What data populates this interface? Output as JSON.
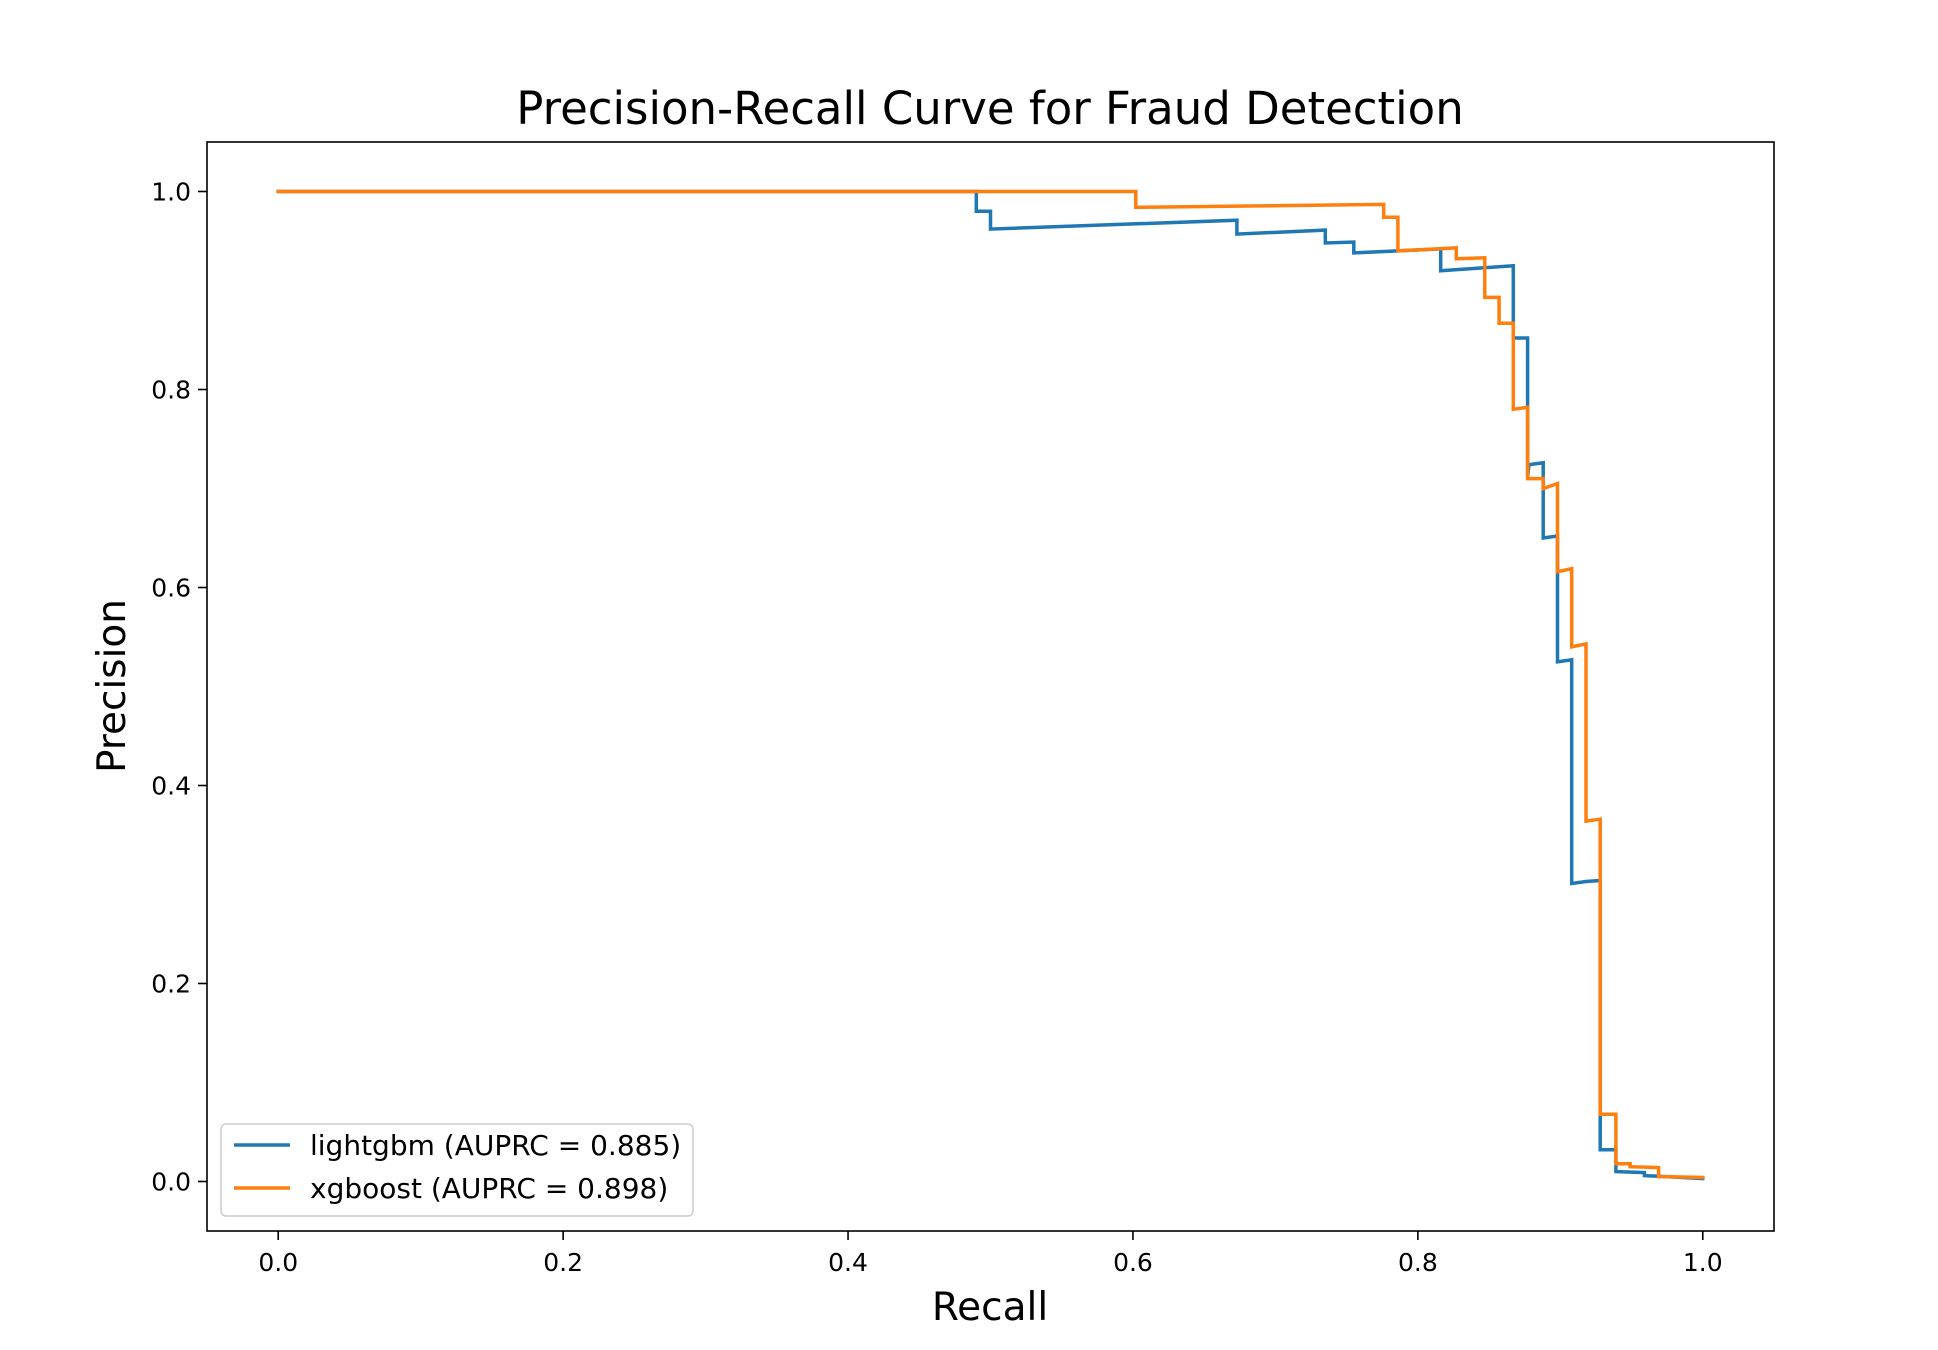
{
  "chart_data": {
    "type": "line",
    "title": "Precision-Recall Curve for Fraud Detection",
    "xlabel": "Recall",
    "ylabel": "Precision",
    "xlim": [
      -0.05,
      1.05
    ],
    "ylim": [
      -0.05,
      1.05
    ],
    "xticks": [
      0.0,
      0.2,
      0.4,
      0.6,
      0.8,
      1.0
    ],
    "xtick_labels": [
      "0.0",
      "0.2",
      "0.4",
      "0.6",
      "0.8",
      "1.0"
    ],
    "yticks": [
      0.0,
      0.2,
      0.4,
      0.6,
      0.8,
      1.0
    ],
    "ytick_labels": [
      "0.0",
      "0.2",
      "0.4",
      "0.6",
      "0.8",
      "1.0"
    ],
    "grid": false,
    "legend_position": "lower-left",
    "series": [
      {
        "name": "lightgbm (AUPRC = 0.885)",
        "color": "#1f77b4",
        "points": [
          [
            0.0,
            1.0
          ],
          [
            0.49,
            1.0
          ],
          [
            0.49,
            0.98
          ],
          [
            0.5,
            0.98
          ],
          [
            0.5,
            0.962
          ],
          [
            0.673,
            0.971
          ],
          [
            0.673,
            0.957
          ],
          [
            0.735,
            0.961
          ],
          [
            0.735,
            0.948
          ],
          [
            0.755,
            0.949
          ],
          [
            0.755,
            0.938
          ],
          [
            0.816,
            0.942
          ],
          [
            0.816,
            0.92
          ],
          [
            0.867,
            0.925
          ],
          [
            0.867,
            0.852
          ],
          [
            0.877,
            0.852
          ],
          [
            0.877,
            0.712
          ],
          [
            0.878,
            0.724
          ],
          [
            0.888,
            0.726
          ],
          [
            0.888,
            0.65
          ],
          [
            0.898,
            0.652
          ],
          [
            0.898,
            0.525
          ],
          [
            0.908,
            0.527
          ],
          [
            0.908,
            0.301
          ],
          [
            0.918,
            0.303
          ],
          [
            0.928,
            0.304
          ],
          [
            0.928,
            0.032
          ],
          [
            0.939,
            0.032
          ],
          [
            0.939,
            0.01
          ],
          [
            0.959,
            0.009
          ],
          [
            0.959,
            0.006
          ],
          [
            1.0,
            0.003
          ]
        ]
      },
      {
        "name": "xgboost (AUPRC = 0.898)",
        "color": "#ff7f0e",
        "points": [
          [
            0.0,
            1.0
          ],
          [
            0.602,
            1.0
          ],
          [
            0.602,
            0.984
          ],
          [
            0.776,
            0.987
          ],
          [
            0.776,
            0.974
          ],
          [
            0.786,
            0.974
          ],
          [
            0.786,
            0.94
          ],
          [
            0.827,
            0.943
          ],
          [
            0.827,
            0.932
          ],
          [
            0.847,
            0.933
          ],
          [
            0.847,
            0.893
          ],
          [
            0.857,
            0.893
          ],
          [
            0.857,
            0.867
          ],
          [
            0.867,
            0.867
          ],
          [
            0.867,
            0.78
          ],
          [
            0.877,
            0.782
          ],
          [
            0.877,
            0.71
          ],
          [
            0.888,
            0.71
          ],
          [
            0.888,
            0.7
          ],
          [
            0.898,
            0.705
          ],
          [
            0.898,
            0.616
          ],
          [
            0.908,
            0.619
          ],
          [
            0.908,
            0.54
          ],
          [
            0.918,
            0.543
          ],
          [
            0.918,
            0.364
          ],
          [
            0.928,
            0.366
          ],
          [
            0.928,
            0.068
          ],
          [
            0.939,
            0.068
          ],
          [
            0.939,
            0.018
          ],
          [
            0.949,
            0.018
          ],
          [
            0.949,
            0.015
          ],
          [
            0.969,
            0.014
          ],
          [
            0.969,
            0.005
          ],
          [
            1.0,
            0.004
          ]
        ]
      }
    ]
  }
}
